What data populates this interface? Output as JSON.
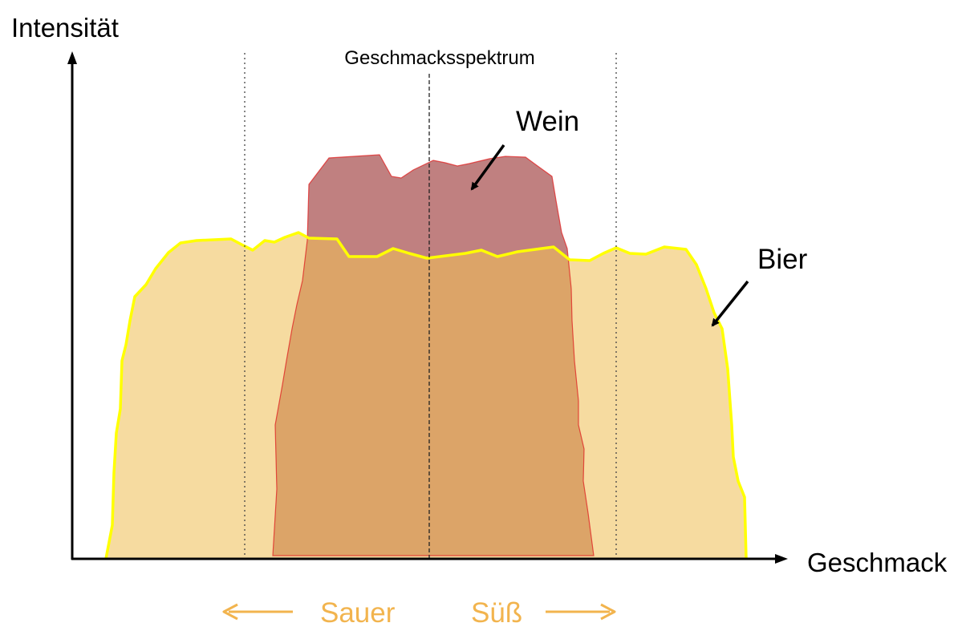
{
  "axes": {
    "y_label": "Intensität",
    "x_label": "Geschmack"
  },
  "center_label": "Geschmacksspektrum",
  "series": [
    {
      "name": "Wein",
      "color": "#c08080",
      "stroke": "#e02020"
    },
    {
      "name": "Bier",
      "color": "#f6dba0",
      "stroke": "#ffff00"
    }
  ],
  "overlap_color": "#dca468",
  "direction": {
    "left": "Sauer",
    "right": "Süß",
    "color": "#f2b44e"
  }
}
